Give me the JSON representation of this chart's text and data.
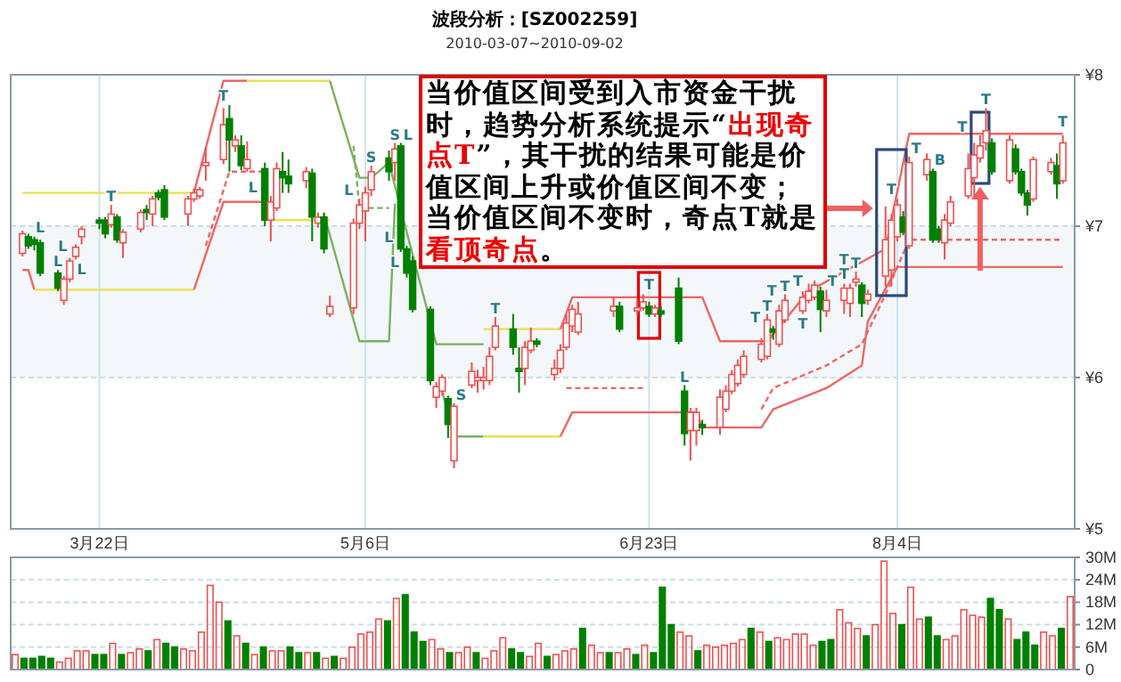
{
  "chart_data": [
    {
      "type": "candlestick",
      "title": "波段分析：[SZ002259]",
      "subtitle": "2010-03-07~2010-09-02",
      "x": [
        "2010-03-09",
        "2010-03-10",
        "2010-03-11",
        "2010-03-12",
        "2010-03-15",
        "2010-03-16",
        "2010-03-17",
        "2010-03-18",
        "2010-03-19",
        "2010-03-22",
        "2010-03-23",
        "2010-03-24",
        "2010-03-25",
        "2010-03-26",
        "2010-03-29",
        "2010-03-30",
        "2010-03-31",
        "2010-04-01",
        "2010-04-02",
        "2010-04-06",
        "2010-04-07",
        "2010-04-08",
        "2010-04-09",
        "2010-04-12",
        "2010-04-13",
        "2010-04-14",
        "2010-04-15",
        "2010-04-16",
        "2010-04-19",
        "2010-04-20",
        "2010-04-21",
        "2010-04-22",
        "2010-04-23",
        "2010-04-26",
        "2010-04-27",
        "2010-04-28",
        "2010-04-29",
        "2010-04-30",
        "2010-05-04",
        "2010-05-05",
        "2010-05-06",
        "2010-05-07",
        "2010-05-10",
        "2010-05-11",
        "2010-05-12",
        "2010-05-13",
        "2010-05-14",
        "2010-05-17",
        "2010-05-18",
        "2010-05-19",
        "2010-05-20",
        "2010-05-21",
        "2010-05-24",
        "2010-05-25",
        "2010-05-26",
        "2010-05-27",
        "2010-05-28",
        "2010-05-31",
        "2010-06-01",
        "2010-06-02",
        "2010-06-03",
        "2010-06-04",
        "2010-06-07",
        "2010-06-08",
        "2010-06-09",
        "2010-06-10",
        "2010-06-11",
        "2010-06-17",
        "2010-06-18",
        "2010-06-21",
        "2010-06-22",
        "2010-06-23",
        "2010-06-24",
        "2010-06-25",
        "2010-06-28",
        "2010-06-29",
        "2010-06-30",
        "2010-07-01",
        "2010-07-02",
        "2010-07-05",
        "2010-07-06",
        "2010-07-07",
        "2010-07-08",
        "2010-07-09",
        "2010-07-12",
        "2010-07-13",
        "2010-07-14",
        "2010-07-15",
        "2010-07-16",
        "2010-07-19",
        "2010-07-20",
        "2010-07-21",
        "2010-07-22",
        "2010-07-23",
        "2010-07-26",
        "2010-07-27",
        "2010-07-28",
        "2010-07-29",
        "2010-07-30",
        "2010-08-02",
        "2010-08-03",
        "2010-08-04",
        "2010-08-05",
        "2010-08-06",
        "2010-08-09",
        "2010-08-10",
        "2010-08-11",
        "2010-08-12",
        "2010-08-13",
        "2010-08-16",
        "2010-08-17",
        "2010-08-18",
        "2010-08-19",
        "2010-08-20",
        "2010-08-23",
        "2010-08-24",
        "2010-08-25",
        "2010-08-26",
        "2010-08-27",
        "2010-08-30",
        "2010-08-31",
        "2010-09-01"
      ],
      "ohlc": [
        [
          6.82,
          6.97,
          6.8,
          6.95
        ],
        [
          6.93,
          6.95,
          6.85,
          6.87
        ],
        [
          6.91,
          6.93,
          6.84,
          6.88
        ],
        [
          6.89,
          6.91,
          6.67,
          6.69
        ],
        [
          6.69,
          6.71,
          6.57,
          6.59
        ],
        [
          6.51,
          6.67,
          6.48,
          6.65
        ],
        [
          6.65,
          6.79,
          6.63,
          6.77
        ],
        [
          6.8,
          6.88,
          6.78,
          6.86
        ],
        [
          6.93,
          7,
          6.88,
          6.98
        ],
        [
          7.04,
          7.06,
          6.98,
          7.02
        ],
        [
          7.04,
          7.06,
          6.92,
          6.95
        ],
        [
          7.01,
          7.14,
          6.99,
          7.08
        ],
        [
          7.06,
          7.08,
          6.89,
          6.91
        ],
        [
          6.89,
          6.98,
          6.79,
          6.96
        ],
        [
          6.98,
          7.11,
          6.96,
          7.09
        ],
        [
          7.11,
          7.14,
          7.04,
          7.09
        ],
        [
          7.08,
          7.2,
          7,
          7.18
        ],
        [
          7.22,
          7.24,
          7.17,
          7.19
        ],
        [
          7.24,
          7.27,
          7.04,
          7.06
        ],
        [
          7.08,
          7.2,
          7,
          7.18
        ],
        [
          7.18,
          7.25,
          7.16,
          7.22
        ],
        [
          7.2,
          7.26,
          7.18,
          7.24
        ],
        [
          7.4,
          7.52,
          7.3,
          7.42
        ],
        [
          7.44,
          7.78,
          7.41,
          7.67
        ],
        [
          7.71,
          7.8,
          7.36,
          7.57
        ],
        [
          7.53,
          7.6,
          7.49,
          7.57
        ],
        [
          7.53,
          7.6,
          7.37,
          7.4
        ],
        [
          7.38,
          7.56,
          7.36,
          7.44
        ],
        [
          7.38,
          7.42,
          7,
          7.04
        ],
        [
          7.04,
          7.2,
          6.9,
          7.16
        ],
        [
          7.12,
          7.42,
          7.1,
          7.38
        ],
        [
          7.36,
          7.49,
          7.22,
          7.32
        ],
        [
          7.33,
          7.44,
          7.22,
          7.28
        ],
        [
          7.3,
          7.39,
          7.25,
          7.36
        ],
        [
          7.35,
          7.38,
          6.9,
          7.06
        ],
        [
          7.02,
          7.09,
          6.99,
          7.06
        ],
        [
          7.06,
          7.09,
          6.82,
          6.85
        ],
        [
          6.42,
          6.54,
          6.4,
          6.47
        ],
        [
          6.46,
          7.05,
          6.42,
          7.02
        ],
        [
          7.02,
          7.18,
          6.98,
          7.14
        ],
        [
          7.1,
          7.26,
          6.9,
          7.22
        ],
        [
          7.24,
          7.4,
          7.2,
          7.36
        ],
        [
          7.45,
          7.5,
          7.3,
          7.36
        ],
        [
          7.42,
          7.55,
          7.3,
          7.51
        ],
        [
          7.53,
          7.55,
          6.83,
          6.85
        ],
        [
          6.85,
          6.87,
          6.66,
          6.69
        ],
        [
          6.77,
          6.8,
          6.43,
          6.45
        ],
        [
          6.45,
          6.47,
          5.95,
          5.98
        ],
        [
          5.87,
          5.97,
          5.8,
          5.94
        ],
        [
          5.91,
          6.02,
          5.88,
          6
        ],
        [
          5.86,
          5.88,
          5.6,
          5.69
        ],
        [
          5.45,
          5.83,
          5.4,
          5.81
        ],
        [
          5.95,
          6.1,
          5.93,
          6.04
        ],
        [
          5.98,
          6.05,
          5.9,
          6
        ],
        [
          5.98,
          6.07,
          5.92,
          6
        ],
        [
          5.98,
          6.2,
          5.95,
          6.14
        ],
        [
          6.2,
          6.4,
          6.18,
          6.34
        ],
        [
          6.32,
          6.42,
          6.15,
          6.2
        ],
        [
          6.06,
          6.2,
          5.9,
          6.04
        ],
        [
          6.06,
          6.24,
          5.95,
          6.2
        ],
        [
          6.18,
          6.33,
          6.16,
          6.24
        ],
        [
          6.24,
          6.26,
          6.2,
          6.22
        ],
        [
          6.02,
          6.12,
          5.98,
          6.06
        ],
        [
          6.06,
          6.22,
          6.03,
          6.18
        ],
        [
          6.2,
          6.42,
          6.18,
          6.36
        ],
        [
          6.34,
          6.48,
          6.3,
          6.45
        ],
        [
          6.3,
          6.5,
          6.28,
          6.42
        ],
        [
          6.44,
          6.53,
          6.4,
          6.47
        ],
        [
          6.47,
          6.5,
          6.3,
          6.32
        ],
        [
          6.44,
          6.52,
          6.41,
          6.46
        ],
        [
          6.46,
          6.55,
          6.44,
          6.5
        ],
        [
          6.47,
          6.5,
          6.4,
          6.42
        ],
        [
          6.42,
          6.48,
          6.4,
          6.46
        ],
        [
          6.44,
          6.47,
          6.4,
          6.42
        ],
        [
          6.59,
          6.66,
          6.22,
          6.24
        ],
        [
          5.91,
          5.95,
          5.55,
          5.63
        ],
        [
          5.65,
          5.8,
          5.45,
          5.77
        ],
        [
          5.65,
          5.8,
          5.55,
          5.77
        ],
        [
          5.69,
          5.72,
          5.62,
          5.67
        ],
        [
          5.67,
          5.92,
          5.62,
          5.87
        ],
        [
          5.79,
          5.95,
          5.77,
          5.91
        ],
        [
          5.91,
          6.05,
          5.89,
          6.02
        ],
        [
          5.96,
          6.12,
          5.94,
          6.08
        ],
        [
          6.02,
          6.18,
          6,
          6.14
        ],
        [
          6.12,
          6.26,
          6.1,
          6.22
        ],
        [
          6.14,
          6.42,
          6.12,
          6.38
        ],
        [
          6.32,
          6.34,
          6.25,
          6.3
        ],
        [
          6.22,
          6.48,
          6.2,
          6.44
        ],
        [
          6.38,
          6.55,
          6.36,
          6.51
        ],
        [
          6.44,
          6.57,
          6.42,
          6.53
        ],
        [
          6.51,
          6.62,
          6.49,
          6.57
        ],
        [
          6.53,
          6.64,
          6.51,
          6.61
        ],
        [
          6.57,
          6.6,
          6.3,
          6.45
        ],
        [
          6.44,
          6.58,
          6.4,
          6.51
        ],
        [
          6.51,
          6.62,
          6.42,
          6.59
        ],
        [
          6.49,
          6.62,
          6.4,
          6.59
        ],
        [
          6.63,
          6.7,
          6.6,
          6.65
        ],
        [
          6.61,
          6.63,
          6.4,
          6.49
        ],
        [
          6.51,
          6.58,
          6.48,
          6.55
        ],
        [
          6.67,
          7.13,
          6.6,
          6.91
        ],
        [
          6.71,
          7.08,
          6.6,
          7.04
        ],
        [
          6.93,
          7.18,
          6.9,
          7.14
        ],
        [
          7.06,
          7.1,
          6.94,
          6.96
        ],
        [
          6.87,
          7.46,
          6.85,
          7.42
        ],
        [
          7.34,
          7.48,
          7.3,
          7.44
        ],
        [
          7.36,
          7.38,
          6.89,
          6.91
        ],
        [
          6.98,
          7,
          6.89,
          6.91
        ],
        [
          6.89,
          7.08,
          6.78,
          7.04
        ],
        [
          7.02,
          7.2,
          7,
          7.16
        ],
        [
          7.2,
          7.48,
          7.18,
          7.38
        ],
        [
          7.32,
          7.55,
          7.18,
          7.47
        ],
        [
          7.45,
          7.6,
          7.42,
          7.53
        ],
        [
          7.55,
          7.78,
          7.5,
          7.63
        ],
        [
          7.55,
          7.58,
          7.34,
          7.36
        ],
        [
          7.3,
          7.6,
          7.28,
          7.57
        ],
        [
          7.51,
          7.54,
          7.34,
          7.36
        ],
        [
          7.36,
          7.38,
          7.2,
          7.22
        ],
        [
          7.22,
          7.24,
          7.07,
          7.14
        ],
        [
          7.18,
          7.46,
          7.16,
          7.44
        ],
        [
          7.36,
          7.45,
          7.34,
          7.42
        ],
        [
          7.4,
          7.48,
          7.18,
          7.28
        ],
        [
          7.3,
          7.6,
          7.28,
          7.55
        ]
      ],
      "series": [
        {
          "type": "line",
          "color": "#ee6666",
          "x": [
            "2010-03-09",
            "2010-03-10",
            "2010-03-11"
          ],
          "values": [
            6.71,
            6.71,
            6.58
          ]
        },
        {
          "type": "line",
          "color": "#e8e050",
          "x": [
            "2010-03-09",
            "2010-04-07"
          ],
          "values": [
            7.22,
            7.22
          ]
        },
        {
          "type": "line",
          "color": "#e8e050",
          "x": [
            "2010-03-11",
            "2010-04-07"
          ],
          "values": [
            6.58,
            6.58
          ]
        },
        {
          "type": "line",
          "color": "#ee6666",
          "x": [
            "2010-04-07",
            "2010-04-12",
            "2010-04-16"
          ],
          "values": [
            7.22,
            7.96,
            7.96
          ]
        },
        {
          "type": "line",
          "color": "#ee6666",
          "x": [
            "2010-04-07",
            "2010-04-12",
            "2010-04-19"
          ],
          "values": [
            6.58,
            7.16,
            7.16
          ]
        },
        {
          "type": "line",
          "color": "#ee6666",
          "line_style": "dashed",
          "x": [
            "2010-04-09",
            "2010-04-13",
            "2010-04-19"
          ],
          "values": [
            6.87,
            7.36,
            7.36
          ]
        },
        {
          "type": "line",
          "color": "#e8e050",
          "x": [
            "2010-04-16",
            "2010-04-30"
          ],
          "values": [
            7.96,
            7.96
          ]
        },
        {
          "type": "line",
          "color": "#e8e050",
          "x": [
            "2010-04-19",
            "2010-04-30"
          ],
          "values": [
            7.04,
            7.04
          ]
        },
        {
          "type": "line",
          "color": "#7ab060",
          "x": [
            "2010-04-30",
            "2010-05-05",
            "2010-05-07",
            "2010-05-10",
            "2010-05-13",
            "2010-05-18",
            "2010-05-26"
          ],
          "values": [
            7.96,
            7.32,
            7.32,
            7.42,
            6.96,
            6.22,
            6.22
          ]
        },
        {
          "type": "line",
          "color": "#7ab060",
          "x": [
            "2010-04-29",
            "2010-05-05",
            "2010-05-10",
            "2010-05-11"
          ],
          "values": [
            7.08,
            6.24,
            6.24,
            7.15
          ]
        },
        {
          "type": "line",
          "color": "#7ab060",
          "line_style": "dashed",
          "x": [
            "2010-05-04",
            "2010-05-05",
            "2010-05-10"
          ],
          "values": [
            7.53,
            7.12,
            7.12
          ]
        },
        {
          "type": "line",
          "color": "#7ab060",
          "x": [
            "2010-05-19",
            "2010-05-21",
            "2010-05-26"
          ],
          "values": [
            5.91,
            5.61,
            5.61
          ]
        },
        {
          "type": "line",
          "color": "#e8e050",
          "x": [
            "2010-05-26",
            "2010-06-08"
          ],
          "values": [
            6.32,
            6.32
          ]
        },
        {
          "type": "line",
          "color": "#e8e050",
          "x": [
            "2010-05-26",
            "2010-06-08"
          ],
          "values": [
            5.61,
            5.61
          ]
        },
        {
          "type": "line",
          "color": "#ee6666",
          "x": [
            "2010-06-08",
            "2010-06-10",
            "2010-07-01",
            "2010-07-02",
            "2010-07-12",
            "2010-07-14",
            "2010-07-23",
            "2010-07-29",
            "2010-07-30",
            "2010-08-04",
            "2010-09-01"
          ],
          "values": [
            5.61,
            5.77,
            5.77,
            5.67,
            5.67,
            5.79,
            5.93,
            6.08,
            6.37,
            6.73,
            6.73
          ]
        },
        {
          "type": "line",
          "color": "#ee6666",
          "x": [
            "2010-06-08",
            "2010-06-10",
            "2010-07-02",
            "2010-07-05",
            "2010-07-13",
            "2010-07-20",
            "2010-08-02",
            "2010-08-06",
            "2010-09-01"
          ],
          "values": [
            6.32,
            6.53,
            6.53,
            6.24,
            6.24,
            6.57,
            6.85,
            7.61,
            7.61
          ]
        },
        {
          "type": "line",
          "color": "#ee6666",
          "line_style": "dashed",
          "x": [
            "2010-06-09",
            "2010-06-22"
          ],
          "values": [
            5.93,
            5.93
          ]
        },
        {
          "type": "line",
          "color": "#ee6666",
          "line_style": "dashed",
          "x": [
            "2010-07-12",
            "2010-07-14",
            "2010-07-23",
            "2010-07-29",
            "2010-08-02",
            "2010-08-06",
            "2010-09-01"
          ],
          "values": [
            5.79,
            5.93,
            6.08,
            6.22,
            6.55,
            6.91,
            6.91
          ]
        }
      ],
      "xlim": [
        "2010-03-07",
        "2010-09-03"
      ],
      "xticks": [
        {
          "value": "2010-03-22",
          "label": "3月22日"
        },
        {
          "value": "2010-05-06",
          "label": "5月6日"
        },
        {
          "value": "2010-06-23",
          "label": "6月23日"
        },
        {
          "value": "2010-08-04",
          "label": "8月4日"
        }
      ],
      "ylim": [
        5,
        8
      ],
      "yticks": [
        {
          "value": 5,
          "label": "¥5"
        },
        {
          "value": 6,
          "label": "¥6"
        },
        {
          "value": 7,
          "label": "¥7"
        },
        {
          "value": 8,
          "label": "¥8"
        }
      ],
      "grid": true,
      "bands": [
        {
          "axis": "y",
          "from": 6,
          "to": 7,
          "color": "#f3f7f9"
        }
      ],
      "annotations": [
        "当价值区间受到入市资金干扰时，趋势分析系统提示“",
        "出现奇点T",
        "”，其干扰的结果可能是价值区间上升或价值区间不变；当价值区间不变时，奇点T就是",
        "看顶奇点",
        "。",
        {
          "text": "L",
          "x": "2010-03-12",
          "y": 6.91
        },
        {
          "text": "L",
          "x": "2010-03-15",
          "y": 6.71
        },
        {
          "text": "L",
          "x": "2010-03-16",
          "y": 6.67
        },
        {
          "text": "L",
          "x": "2010-03-17",
          "y": 6.79
        },
        {
          "text": "T",
          "x": "2010-03-24",
          "y": 7.14
        },
        {
          "text": "T",
          "x": "2010-04-12",
          "y": 7.78
        },
        {
          "text": "L",
          "x": "2010-04-20",
          "y": 7.2
        },
        {
          "text": "L",
          "x": "2010-05-05",
          "y": 7.18
        },
        {
          "text": "S",
          "x": "2010-05-07",
          "y": 7.4
        },
        {
          "text": "S",
          "x": "2010-05-11",
          "y": 7.55
        },
        {
          "text": "L",
          "x": "2010-05-12",
          "y": 7.55
        },
        {
          "text": "L",
          "x": "2010-05-13",
          "y": 6.87
        },
        {
          "text": "L",
          "x": "2010-05-14",
          "y": 6.8
        },
        {
          "text": "S",
          "x": "2010-05-21",
          "y": 5.83
        },
        {
          "text": "T",
          "x": "2010-05-28",
          "y": 6.4
        },
        {
          "text": "T",
          "x": "2010-06-23",
          "y": 6.5
        },
        {
          "text": "L",
          "x": "2010-06-29",
          "y": 5.95
        },
        {
          "text": "T",
          "x": "2010-07-13",
          "y": 6.42
        },
        {
          "text": "T",
          "x": "2010-07-14",
          "y": 6.34
        },
        {
          "text": "T",
          "x": "2010-07-15",
          "y": 6.48
        },
        {
          "text": "T",
          "x": "2010-07-16",
          "y": 6.55
        },
        {
          "text": "T",
          "x": "2010-07-19",
          "y": 6.57
        },
        {
          "text": "T",
          "x": "2010-07-20",
          "y": 6.62
        },
        {
          "text": "T",
          "x": "2010-07-21",
          "y": 6.64
        },
        {
          "text": "T",
          "x": "2010-07-23",
          "y": 6.58
        },
        {
          "text": "T",
          "x": "2010-07-26",
          "y": 6.62
        },
        {
          "text": "T",
          "x": "2010-07-28",
          "y": 6.7
        },
        {
          "text": "T",
          "x": "2010-08-03",
          "y": 7.08
        },
        {
          "text": "T",
          "x": "2010-08-06",
          "y": 7.46
        },
        {
          "text": "B",
          "x": "2010-08-10",
          "y": 7.38
        },
        {
          "text": "T",
          "x": "2010-08-18",
          "y": 7.6
        },
        {
          "text": "T",
          "x": "2010-08-19",
          "y": 7.78
        },
        {
          "text": "T",
          "x": "2010-09-01",
          "y": 7.6
        }
      ]
    },
    {
      "type": "bar",
      "categories": [
        null,
        null,
        null,
        null,
        null,
        null,
        null,
        null,
        null,
        null,
        null,
        null,
        null,
        null,
        null,
        null,
        null,
        null,
        null,
        null,
        null,
        null,
        null,
        null,
        null,
        null,
        null,
        null,
        null,
        null,
        null,
        null,
        null,
        null,
        null,
        null,
        null,
        null,
        null,
        null,
        null,
        null,
        null,
        null,
        null,
        null,
        null,
        null,
        null,
        null,
        null,
        null,
        null,
        null,
        null,
        null,
        null,
        null,
        null,
        null,
        null,
        null,
        null,
        null,
        null,
        null,
        null,
        null,
        null,
        null,
        null,
        null,
        null,
        null,
        null,
        null,
        null,
        null,
        null,
        null,
        null,
        null,
        null,
        null,
        null,
        null,
        null,
        null,
        null,
        null,
        null,
        null,
        null,
        null,
        null,
        null,
        null,
        null,
        null,
        null,
        null,
        null,
        null,
        null,
        null,
        null,
        null,
        null,
        null,
        null,
        null,
        null,
        null,
        null,
        null,
        null,
        null,
        null,
        null,
        null
      ],
      "values": [
        4,
        3,
        3,
        3.5,
        3,
        2,
        3,
        5,
        5,
        4,
        4,
        7,
        4,
        4.5,
        5.5,
        5,
        8,
        7,
        6,
        5.5,
        5,
        10,
        22.5,
        18,
        13,
        9,
        7,
        4,
        6,
        5,
        5,
        6,
        4.5,
        4.5,
        4.5,
        3,
        3.5,
        3,
        6,
        9.5,
        10,
        13.5,
        13,
        19,
        20,
        10,
        7.5,
        8,
        5.5,
        4.5,
        4.5,
        6,
        4.5,
        3,
        5,
        8.5,
        5.5,
        4.5,
        3.5,
        7,
        3.5,
        4,
        5,
        5.5,
        11,
        6.5,
        4.5,
        4.5,
        4.5,
        5.5,
        4,
        6.5,
        4.5,
        22,
        12,
        10,
        9,
        5,
        6.5,
        6,
        6.5,
        7,
        8,
        11,
        10,
        7.5,
        8.5,
        8,
        9.5,
        9.5,
        6.5,
        7.5,
        8,
        16,
        12.5,
        11,
        9,
        12,
        29,
        15,
        12,
        22,
        13.5,
        14,
        9,
        8,
        9,
        16,
        14.5,
        14,
        19,
        16,
        13.5,
        8,
        10,
        6.5,
        10,
        9,
        11,
        19.5
      ],
      "colors": [
        "#f05050",
        "#008000",
        "#008000",
        "#008000",
        "#008000",
        "#f05050",
        "#f05050",
        "#f05050",
        "#f05050",
        "#008000",
        "#008000",
        "#f05050",
        "#008000",
        "#f05050",
        "#f05050",
        "#008000",
        "#f05050",
        "#008000",
        "#008000",
        "#f05050",
        "#f05050",
        "#f05050",
        "#f05050",
        "#f05050",
        "#008000",
        "#f05050",
        "#008000",
        "#f05050",
        "#008000",
        "#f05050",
        "#f05050",
        "#008000",
        "#008000",
        "#f05050",
        "#008000",
        "#f05050",
        "#008000",
        "#f05050",
        "#f05050",
        "#f05050",
        "#f05050",
        "#f05050",
        "#008000",
        "#f05050",
        "#008000",
        "#008000",
        "#008000",
        "#f05050",
        "#f05050",
        "#008000",
        "#f05050",
        "#f05050",
        "#008000",
        "#f05050",
        "#f05050",
        "#f05050",
        "#008000",
        "#008000",
        "#f05050",
        "#f05050",
        "#008000",
        "#f05050",
        "#f05050",
        "#f05050",
        "#008000",
        "#f05050",
        "#f05050",
        "#008000",
        "#f05050",
        "#f05050",
        "#008000",
        "#f05050",
        "#008000",
        "#008000",
        "#008000",
        "#f05050",
        "#f05050",
        "#008000",
        "#f05050",
        "#f05050",
        "#f05050",
        "#f05050",
        "#f05050",
        "#008000",
        "#f05050",
        "#008000",
        "#f05050",
        "#f05050",
        "#f05050",
        "#f05050",
        "#f05050",
        "#008000",
        "#008000",
        "#f05050",
        "#f05050",
        "#f05050",
        "#008000",
        "#f05050",
        "#f05050",
        "#f05050",
        "#008000",
        "#f05050",
        "#f05050",
        "#008000",
        "#008000",
        "#f05050",
        "#f05050",
        "#f05050",
        "#f05050",
        "#f05050",
        "#008000",
        "#008000",
        "#f05050",
        "#008000",
        "#008000",
        "#008000",
        "#f05050",
        "#f05050",
        "#008000",
        "#f05050"
      ],
      "ylim": [
        0,
        30
      ],
      "yticks": [
        0,
        {
          "value": 6,
          "label": "6M"
        },
        {
          "value": 12,
          "label": "12M"
        },
        {
          "value": 18,
          "label": "18M"
        },
        {
          "value": 24,
          "label": "24M"
        },
        {
          "value": 30,
          "label": "30M"
        }
      ],
      "grid": "y",
      "tick_labels": "y"
    }
  ]
}
